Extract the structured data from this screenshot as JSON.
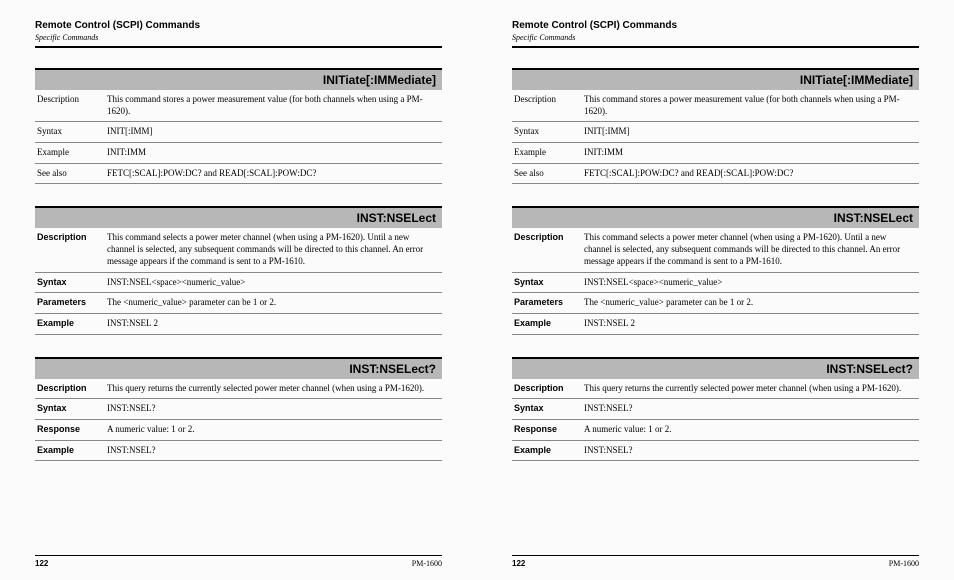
{
  "header": {
    "title": "Remote Control (SCPI) Commands",
    "subtitle": "Specific Commands"
  },
  "footer": {
    "page": "122",
    "product": "PM-1600"
  },
  "blocks": [
    {
      "title": "INITiate[:IMMediate]",
      "bold_labels": false,
      "rows": [
        {
          "label": "Description",
          "value": "This command stores a power measurement value (for both channels when using a PM-1620)."
        },
        {
          "label": "Syntax",
          "value": "INIT[:IMM]"
        },
        {
          "label": "Example",
          "value": "INIT:IMM"
        },
        {
          "label": "See also",
          "value": "FETC[:SCAL]:POW:DC? and READ[:SCAL]:POW:DC?"
        }
      ]
    },
    {
      "title": "INST:NSELect",
      "bold_labels": true,
      "rows": [
        {
          "label": "Description",
          "value": "This command selects a power meter channel (when using a PM-1620). Until a new channel is selected, any subsequent commands will be directed to this channel. An error message appears if the command is sent to a PM-1610."
        },
        {
          "label": "Syntax",
          "value": "INST:NSEL<space><numeric_value>"
        },
        {
          "label": "Parameters",
          "value": "The <numeric_value> parameter can be 1 or 2."
        },
        {
          "label": "Example",
          "value": "INST:NSEL 2"
        }
      ]
    },
    {
      "title": "INST:NSELect?",
      "bold_labels": true,
      "rows": [
        {
          "label": "Description",
          "value": "This query returns the currently selected power meter channel (when using a PM-1620)."
        },
        {
          "label": "Syntax",
          "value": "INST:NSEL?"
        },
        {
          "label": "Response",
          "value": "A numeric value: 1 or 2."
        },
        {
          "label": "Example",
          "value": "INST:NSEL?"
        }
      ]
    }
  ]
}
